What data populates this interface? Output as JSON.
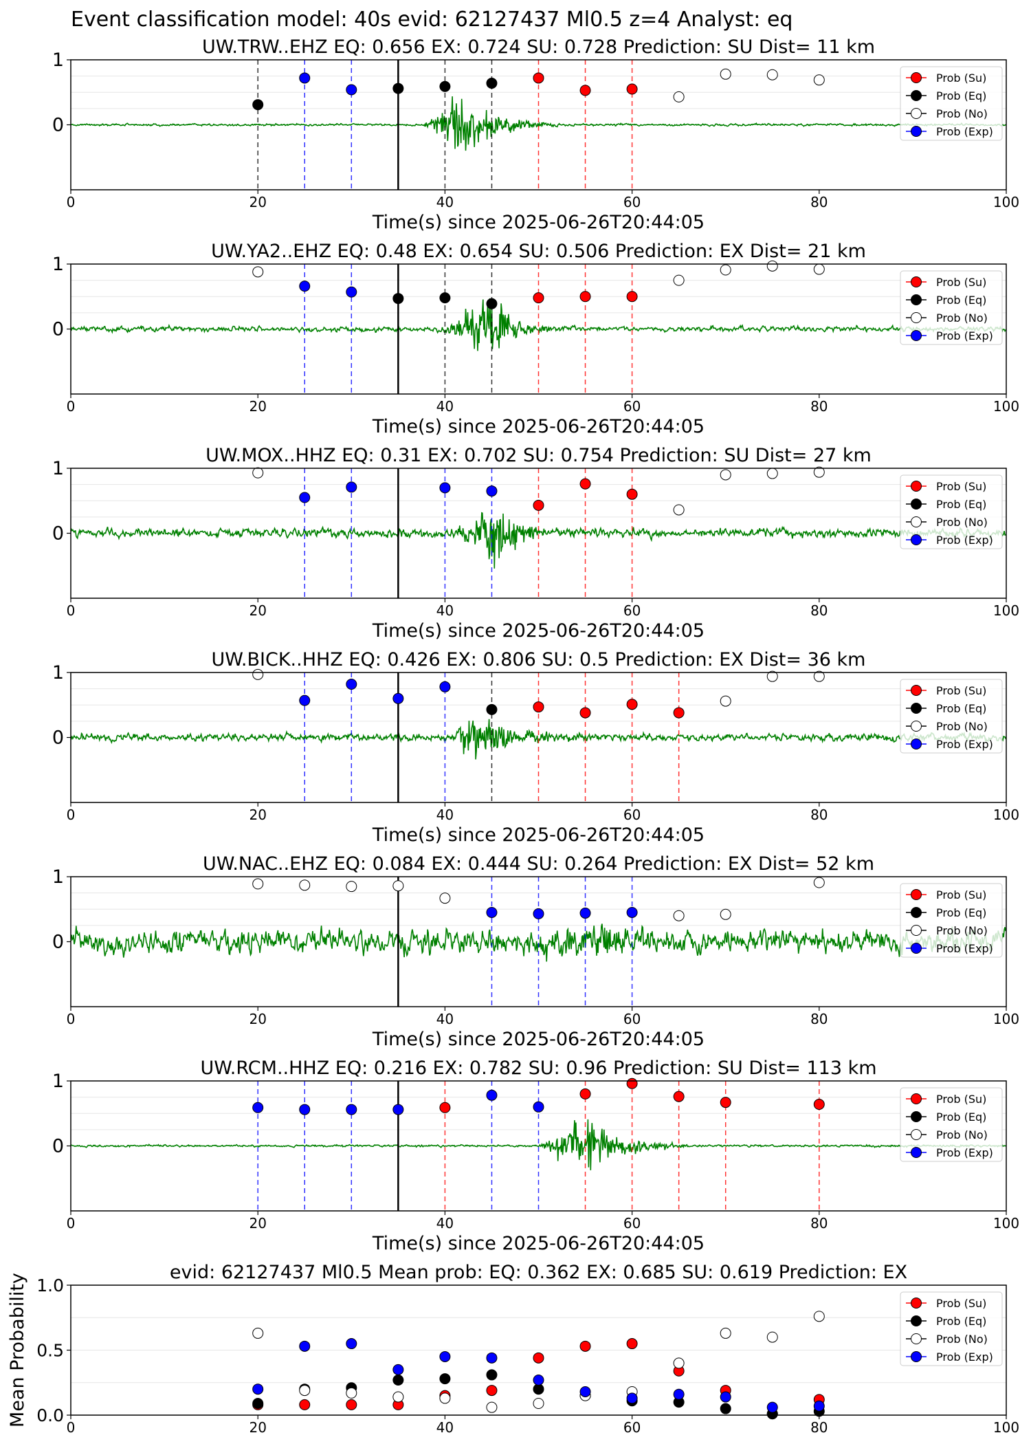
{
  "figure": {
    "suptitle": "Event classification model: 40s evid: 62127437 Ml0.5 z=4 Analyst: eq"
  },
  "legend": {
    "entries": [
      {
        "label": "Prob (Su)",
        "color": "#ff0000"
      },
      {
        "label": "Prob (Eq)",
        "color": "#000000"
      },
      {
        "label": "Prob (No)",
        "color": "#ffffff"
      },
      {
        "label": "Prob (Exp)",
        "color": "#0000ff"
      }
    ]
  },
  "colors": {
    "waveform": "#008000",
    "su": "#ff0000",
    "eq": "#000000",
    "no": "#ffffff",
    "exp": "#0000ff",
    "event_line": "#000000"
  },
  "chart_data": [
    {
      "type": "line",
      "title": "UW.TRW..EHZ   EQ: 0.656  EX: 0.724  SU: 0.728   Prediction: SU    Dist= 11 km",
      "xlabel": "Time(s) since 2025-06-26T20:44:05",
      "xlim": [
        0,
        100
      ],
      "ylim": [
        -1,
        1
      ],
      "xticks": [
        "0",
        "20",
        "40",
        "60",
        "80",
        "100"
      ],
      "yticks": [
        "0",
        "1"
      ],
      "event_time": 35,
      "waveform": {
        "noise": 0.03,
        "burst": {
          "start": 37.5,
          "peak": 41.5,
          "end": 52,
          "amp": 0.95
        }
      },
      "windows": [
        {
          "t": 20,
          "class": "eq"
        },
        {
          "t": 25,
          "class": "exp"
        },
        {
          "t": 30,
          "class": "exp"
        },
        {
          "t": 40,
          "class": "eq"
        },
        {
          "t": 45,
          "class": "eq"
        },
        {
          "t": 50,
          "class": "su"
        },
        {
          "t": 55,
          "class": "su"
        },
        {
          "t": 60,
          "class": "su"
        }
      ],
      "series": [
        {
          "name": "Prob (Su)",
          "x": [
            50,
            55,
            60
          ],
          "y": [
            0.72,
            0.53,
            0.55
          ]
        },
        {
          "name": "Prob (Eq)",
          "x": [
            20,
            35,
            40,
            45
          ],
          "y": [
            0.31,
            0.56,
            0.59,
            0.64
          ]
        },
        {
          "name": "Prob (No)",
          "x": [
            65,
            70,
            75,
            80
          ],
          "y": [
            0.43,
            0.78,
            0.77,
            0.69
          ]
        },
        {
          "name": "Prob (Exp)",
          "x": [
            25,
            30
          ],
          "y": [
            0.72,
            0.54
          ]
        }
      ]
    },
    {
      "type": "line",
      "title": "UW.YA2..EHZ   EQ: 0.48  EX: 0.654  SU: 0.506   Prediction: EX    Dist= 21 km",
      "xlabel": "Time(s) since 2025-06-26T20:44:05",
      "xlim": [
        0,
        100
      ],
      "ylim": [
        -1,
        1
      ],
      "xticks": [
        "0",
        "20",
        "40",
        "60",
        "80",
        "100"
      ],
      "yticks": [
        "0",
        "1"
      ],
      "event_time": 35,
      "waveform": {
        "noise": 0.07,
        "burst": {
          "start": 39.5,
          "peak": 45,
          "end": 52,
          "amp": 0.8
        }
      },
      "windows": [
        {
          "t": 25,
          "class": "exp"
        },
        {
          "t": 30,
          "class": "exp"
        },
        {
          "t": 40,
          "class": "eq"
        },
        {
          "t": 45,
          "class": "eq"
        },
        {
          "t": 50,
          "class": "su"
        },
        {
          "t": 55,
          "class": "su"
        },
        {
          "t": 60,
          "class": "su"
        }
      ],
      "series": [
        {
          "name": "Prob (Su)",
          "x": [
            50,
            55,
            60
          ],
          "y": [
            0.48,
            0.5,
            0.5
          ]
        },
        {
          "name": "Prob (Eq)",
          "x": [
            35,
            40,
            45
          ],
          "y": [
            0.47,
            0.48,
            0.39
          ]
        },
        {
          "name": "Prob (No)",
          "x": [
            20,
            65,
            70,
            75,
            80
          ],
          "y": [
            0.88,
            0.75,
            0.91,
            0.97,
            0.92
          ]
        },
        {
          "name": "Prob (Exp)",
          "x": [
            25,
            30
          ],
          "y": [
            0.66,
            0.57
          ]
        }
      ]
    },
    {
      "type": "line",
      "title": "UW.MOX..HHZ   EQ: 0.31  EX: 0.702  SU: 0.754   Prediction: SU    Dist= 27 km",
      "xlabel": "Time(s) since 2025-06-26T20:44:05",
      "xlim": [
        0,
        100
      ],
      "ylim": [
        -1,
        1
      ],
      "xticks": [
        "0",
        "20",
        "40",
        "60",
        "80",
        "100"
      ],
      "yticks": [
        "0",
        "1"
      ],
      "event_time": 35,
      "waveform": {
        "noise": 0.12,
        "burst": {
          "start": 40,
          "peak": 46,
          "end": 52,
          "amp": 0.75
        }
      },
      "windows": [
        {
          "t": 25,
          "class": "exp"
        },
        {
          "t": 30,
          "class": "exp"
        },
        {
          "t": 40,
          "class": "exp"
        },
        {
          "t": 45,
          "class": "exp"
        },
        {
          "t": 50,
          "class": "su"
        },
        {
          "t": 55,
          "class": "su"
        },
        {
          "t": 60,
          "class": "su"
        }
      ],
      "series": [
        {
          "name": "Prob (Su)",
          "x": [
            50,
            55,
            60
          ],
          "y": [
            0.43,
            0.76,
            0.6
          ]
        },
        {
          "name": "Prob (Eq)",
          "x": [],
          "y": []
        },
        {
          "name": "Prob (No)",
          "x": [
            20,
            65,
            70,
            75,
            80
          ],
          "y": [
            0.93,
            0.36,
            0.9,
            0.92,
            0.94
          ]
        },
        {
          "name": "Prob (Exp)",
          "x": [
            25,
            30,
            40,
            45
          ],
          "y": [
            0.55,
            0.71,
            0.7,
            0.65
          ]
        }
      ]
    },
    {
      "type": "line",
      "title": "UW.BICK..HHZ   EQ: 0.426  EX: 0.806  SU: 0.5   Prediction: EX    Dist= 36 km",
      "xlabel": "Time(s) since 2025-06-26T20:44:05",
      "xlim": [
        0,
        100
      ],
      "ylim": [
        -1,
        1
      ],
      "xticks": [
        "0",
        "20",
        "40",
        "60",
        "80",
        "100"
      ],
      "yticks": [
        "0",
        "1"
      ],
      "event_time": 35,
      "waveform": {
        "noise": 0.1,
        "burst": {
          "start": 41,
          "peak": 42.5,
          "end": 56,
          "amp": 0.7
        }
      },
      "windows": [
        {
          "t": 25,
          "class": "exp"
        },
        {
          "t": 30,
          "class": "exp"
        },
        {
          "t": 40,
          "class": "exp"
        },
        {
          "t": 45,
          "class": "eq"
        },
        {
          "t": 50,
          "class": "su"
        },
        {
          "t": 55,
          "class": "su"
        },
        {
          "t": 60,
          "class": "su"
        },
        {
          "t": 65,
          "class": "su"
        }
      ],
      "series": [
        {
          "name": "Prob (Su)",
          "x": [
            50,
            55,
            60,
            65
          ],
          "y": [
            0.47,
            0.38,
            0.51,
            0.38
          ]
        },
        {
          "name": "Prob (Eq)",
          "x": [
            45
          ],
          "y": [
            0.43
          ]
        },
        {
          "name": "Prob (No)",
          "x": [
            20,
            70,
            75,
            80
          ],
          "y": [
            0.97,
            0.56,
            0.94,
            0.94
          ]
        },
        {
          "name": "Prob (Exp)",
          "x": [
            25,
            30,
            35,
            40
          ],
          "y": [
            0.57,
            0.82,
            0.6,
            0.78
          ]
        }
      ]
    },
    {
      "type": "line",
      "title": "UW.NAC..EHZ   EQ: 0.084  EX: 0.444  SU: 0.264   Prediction: EX    Dist= 52 km",
      "xlabel": "Time(s) since 2025-06-26T20:44:05",
      "xlim": [
        0,
        100
      ],
      "ylim": [
        -1,
        1
      ],
      "xticks": [
        "0",
        "20",
        "40",
        "60",
        "80",
        "100"
      ],
      "yticks": [
        "0",
        "1"
      ],
      "event_time": 35,
      "waveform": {
        "noise": 0.32,
        "burst": {
          "start": 45,
          "peak": 57,
          "end": 63,
          "amp": 0.45
        }
      },
      "windows": [
        {
          "t": 45,
          "class": "exp"
        },
        {
          "t": 50,
          "class": "exp"
        },
        {
          "t": 55,
          "class": "exp"
        },
        {
          "t": 60,
          "class": "exp"
        }
      ],
      "series": [
        {
          "name": "Prob (Su)",
          "x": [],
          "y": []
        },
        {
          "name": "Prob (Eq)",
          "x": [],
          "y": []
        },
        {
          "name": "Prob (No)",
          "x": [
            20,
            25,
            30,
            35,
            40,
            65,
            70,
            80
          ],
          "y": [
            0.89,
            0.87,
            0.85,
            0.86,
            0.67,
            0.4,
            0.42,
            0.91
          ]
        },
        {
          "name": "Prob (Exp)",
          "x": [
            45,
            50,
            55,
            60
          ],
          "y": [
            0.45,
            0.43,
            0.44,
            0.45
          ]
        }
      ]
    },
    {
      "type": "line",
      "title": "UW.RCM..HHZ   EQ: 0.216  EX: 0.782  SU: 0.96   Prediction: SU    Dist= 113 km",
      "xlabel": "Time(s) since 2025-06-26T20:44:05",
      "xlim": [
        0,
        100
      ],
      "ylim": [
        -1,
        1
      ],
      "xticks": [
        "0",
        "20",
        "40",
        "60",
        "80",
        "100"
      ],
      "yticks": [
        "0",
        "1"
      ],
      "event_time": 35,
      "waveform": {
        "noise": 0.03,
        "burst": {
          "start": 50,
          "peak": 55,
          "end": 66,
          "amp": 0.75
        }
      },
      "windows": [
        {
          "t": 20,
          "class": "exp"
        },
        {
          "t": 25,
          "class": "exp"
        },
        {
          "t": 30,
          "class": "exp"
        },
        {
          "t": 40,
          "class": "su"
        },
        {
          "t": 45,
          "class": "exp"
        },
        {
          "t": 50,
          "class": "exp"
        },
        {
          "t": 55,
          "class": "su"
        },
        {
          "t": 60,
          "class": "su"
        },
        {
          "t": 65,
          "class": "su"
        },
        {
          "t": 70,
          "class": "su"
        },
        {
          "t": 80,
          "class": "su"
        }
      ],
      "series": [
        {
          "name": "Prob (Su)",
          "x": [
            40,
            55,
            60,
            65,
            70,
            80
          ],
          "y": [
            0.59,
            0.8,
            0.96,
            0.76,
            0.67,
            0.64
          ]
        },
        {
          "name": "Prob (Eq)",
          "x": [],
          "y": []
        },
        {
          "name": "Prob (No)",
          "x": [],
          "y": []
        },
        {
          "name": "Prob (Exp)",
          "x": [
            20,
            25,
            30,
            35,
            45,
            50
          ],
          "y": [
            0.59,
            0.56,
            0.56,
            0.56,
            0.78,
            0.6
          ]
        }
      ]
    },
    {
      "type": "scatter",
      "title": "evid: 62127437  Ml0.5   Mean prob:   EQ: 0.362  EX: 0.685  SU: 0.619   Prediction: EX",
      "ylabel": "Mean Probability",
      "xlim": [
        0,
        100
      ],
      "ylim": [
        0,
        1
      ],
      "xticks": [
        "0",
        "20",
        "40",
        "60",
        "80",
        "100"
      ],
      "yticks": [
        "0.0",
        "0.5",
        "1.0"
      ],
      "series": [
        {
          "name": "Prob (Su)",
          "x": [
            20,
            25,
            30,
            35,
            40,
            45,
            50,
            55,
            60,
            65,
            70,
            75,
            80
          ],
          "y": [
            0.08,
            0.08,
            0.08,
            0.08,
            0.15,
            0.19,
            0.44,
            0.53,
            0.55,
            0.34,
            0.19,
            0.01,
            0.12
          ]
        },
        {
          "name": "Prob (Eq)",
          "x": [
            20,
            25,
            30,
            35,
            40,
            45,
            50,
            55,
            60,
            65,
            70,
            75,
            80
          ],
          "y": [
            0.09,
            0.2,
            0.21,
            0.27,
            0.28,
            0.31,
            0.2,
            0.15,
            0.11,
            0.1,
            0.05,
            0.01,
            0.03
          ]
        },
        {
          "name": "Prob (No)",
          "x": [
            20,
            25,
            30,
            35,
            40,
            45,
            50,
            55,
            60,
            65,
            70,
            75,
            80
          ],
          "y": [
            0.63,
            0.19,
            0.17,
            0.14,
            0.13,
            0.06,
            0.09,
            0.15,
            0.18,
            0.4,
            0.63,
            0.6,
            0.76
          ]
        },
        {
          "name": "Prob (Exp)",
          "x": [
            20,
            25,
            30,
            35,
            40,
            45,
            50,
            55,
            60,
            65,
            70,
            75,
            80
          ],
          "y": [
            0.2,
            0.53,
            0.55,
            0.35,
            0.45,
            0.44,
            0.27,
            0.18,
            0.13,
            0.16,
            0.14,
            0.06,
            0.07
          ]
        }
      ]
    }
  ]
}
